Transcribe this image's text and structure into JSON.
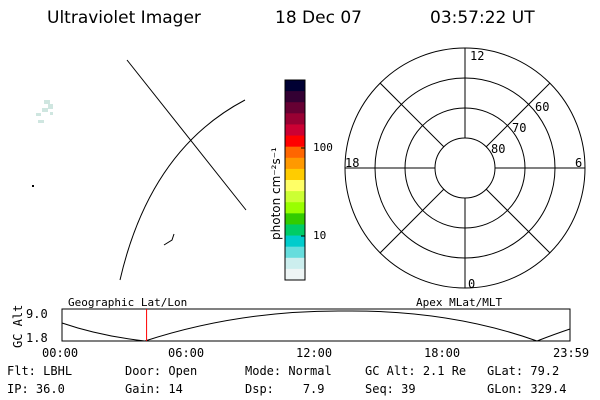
{
  "header": {
    "instrument": "Ultraviolet Imager",
    "date": "18 Dec 07",
    "time": "03:57:22 UT"
  },
  "colorbar": {
    "unit_label": "photon cm⁻²s⁻¹",
    "ticks": [
      "100",
      "10"
    ],
    "colors": [
      "#000033",
      "#330033",
      "#660033",
      "#990033",
      "#cc0033",
      "#ff0000",
      "#ff6600",
      "#ff9900",
      "#ffcc00",
      "#ffff66",
      "#ccff33",
      "#99ff00",
      "#33cc00",
      "#00cc66",
      "#00cccc",
      "#66dddd",
      "#cceeee",
      "#eef5f5"
    ]
  },
  "polar_plot": {
    "labels": {
      "top": "12",
      "left": "18",
      "right": "6",
      "bottom": "0"
    },
    "lat_labels": [
      "60",
      "70",
      "80"
    ]
  },
  "altitude_strip": {
    "axis_title": "GC Alt",
    "y_ticks": [
      "9.0",
      "1.8"
    ],
    "left_label": "Geographic Lat/Lon",
    "right_label": "Apex MLat/MLT",
    "time_ticks": [
      "00:00",
      "06:00",
      "12:00",
      "18:00",
      "23:59"
    ],
    "current_time_marker_fraction": 0.1665
  },
  "status": {
    "row1": [
      {
        "key": "Flt:",
        "value": "LBHL"
      },
      {
        "key": "Door:",
        "value": "Open"
      },
      {
        "key": "Mode:",
        "value": "Normal"
      },
      {
        "key": "GC Alt:",
        "value": "2.1 Re"
      },
      {
        "key": "GLat:",
        "value": "79.2"
      }
    ],
    "row2": [
      {
        "key": "IP:",
        "value": "36.0"
      },
      {
        "key": "Gain:",
        "value": "14"
      },
      {
        "key": "Dsp:",
        "value": "7.9"
      },
      {
        "key": "Seq:",
        "value": "39"
      },
      {
        "key": "GLon:",
        "value": "329.4"
      }
    ]
  }
}
